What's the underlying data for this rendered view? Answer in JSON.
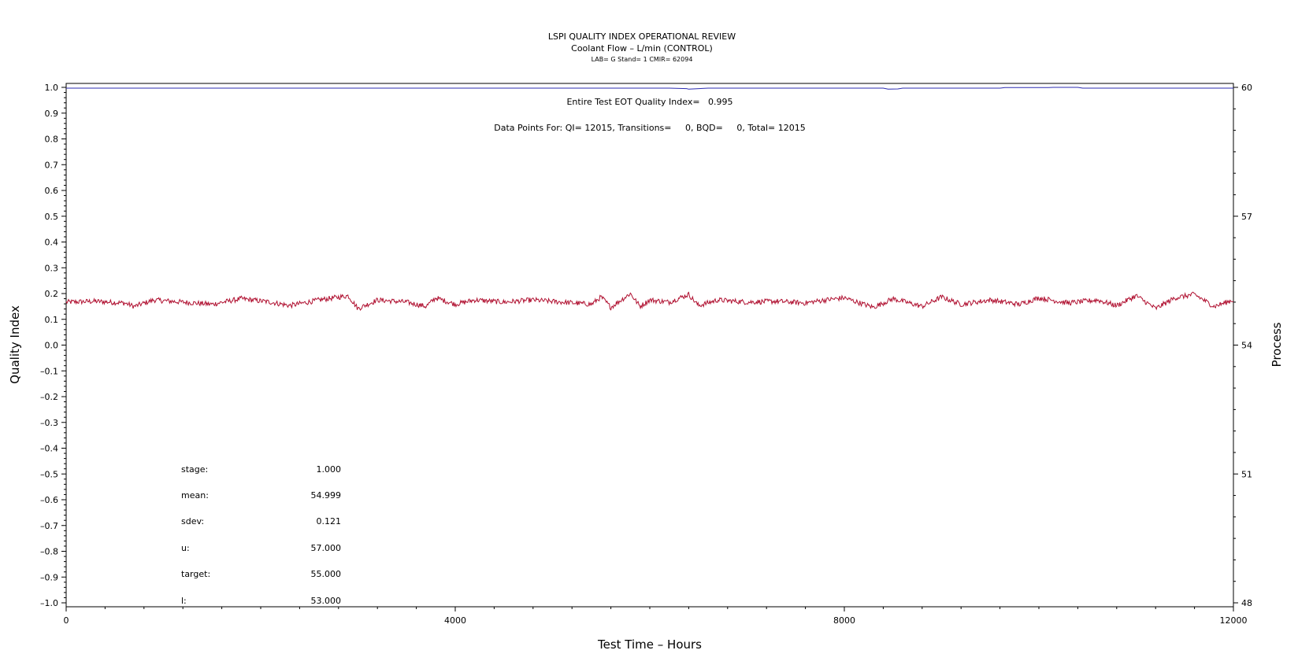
{
  "chart_data": {
    "type": "line",
    "title": "LSPI QUALITY INDEX OPERATIONAL REVIEW",
    "subtitle": "Coolant Flow – L/min (CONTROL)",
    "subsubtitle": "LAB= G Stand= 1 CMIR= 62094",
    "xlabel": "Test Time – Hours",
    "ylabel": "Quality Index",
    "y2label": "Process",
    "xlim": [
      0,
      12000
    ],
    "ylim": [
      -1.0,
      1.0
    ],
    "y2lim": [
      48,
      60
    ],
    "x_ticks": [
      0,
      4000,
      8000,
      12000
    ],
    "y_ticks": [
      1.0,
      0.9,
      0.8,
      0.7,
      0.6,
      0.5,
      0.4,
      0.3,
      0.2,
      0.1,
      0.0,
      -0.1,
      -0.2,
      -0.3,
      -0.4,
      -0.5,
      -0.6,
      -0.7,
      -0.8,
      -0.9,
      -1.0
    ],
    "y_tick_labels": [
      "1.0",
      "0.9",
      "0.8",
      "0.7",
      "0.6",
      "0.5",
      "0.4",
      "0.3",
      "0.2",
      "0.1",
      "0.0",
      "–0.1",
      "–0.2",
      "–0.3",
      "–0.4",
      "–0.5",
      "–0.6",
      "–0.7",
      "–0.8",
      "–0.9",
      "–1.0"
    ],
    "y2_ticks": [
      60,
      57,
      54,
      51,
      48
    ],
    "grid": false,
    "series": [
      {
        "role": "quality-index",
        "color": "#2b2bb0",
        "x": [
          0,
          6200,
          6380,
          6400,
          6600,
          8400,
          8450,
          8550,
          8600,
          9600,
          9650,
          10100,
          10150,
          10400,
          10450,
          12000
        ],
        "y": [
          0.997,
          0.997,
          0.995,
          0.993,
          0.997,
          0.997,
          0.993,
          0.994,
          0.997,
          0.997,
          0.999,
          0.999,
          1.0,
          1.0,
          0.997,
          0.997
        ]
      },
      {
        "role": "process",
        "color": "#b01030",
        "x": [
          0,
          300,
          600,
          700,
          900,
          1200,
          1500,
          1800,
          2100,
          2300,
          2600,
          2900,
          3000,
          3200,
          3500,
          3700,
          3800,
          4000,
          4200,
          4500,
          4800,
          5100,
          5400,
          5500,
          5600,
          5800,
          5900,
          6000,
          6200,
          6400,
          6500,
          6700,
          7000,
          7300,
          7600,
          7800,
          8000,
          8200,
          8300,
          8500,
          8800,
          9000,
          9200,
          9500,
          9800,
          10000,
          10300,
          10600,
          10800,
          11000,
          11200,
          11400,
          11600,
          11800,
          12000
        ],
        "y": [
          55.0,
          55.02,
          54.98,
          54.9,
          55.05,
          55.0,
          54.95,
          55.08,
          55.0,
          54.92,
          55.05,
          55.15,
          54.85,
          55.05,
          55.0,
          54.9,
          55.1,
          54.95,
          55.05,
          55.0,
          55.05,
          55.0,
          54.95,
          55.12,
          54.88,
          55.2,
          54.9,
          55.05,
          55.0,
          55.18,
          54.92,
          55.05,
          55.0,
          55.02,
          54.98,
          55.05,
          55.1,
          54.95,
          54.88,
          55.08,
          54.9,
          55.12,
          54.95,
          55.05,
          54.95,
          55.1,
          54.98,
          55.05,
          54.92,
          55.15,
          54.85,
          55.1,
          55.18,
          54.9,
          55.05
        ]
      }
    ],
    "annotations": {
      "eot": "Entire Test EOT Quality Index=   0.995",
      "points": "Data Points For: QI= 12015, Transitions=     0, BQD=     0, Total= 12015"
    },
    "stats": [
      {
        "label": "stage:",
        "value": "1.000"
      },
      {
        "label": "mean:",
        "value": "54.999"
      },
      {
        "label": "sdev:",
        "value": "0.121"
      },
      {
        "label": "u:",
        "value": "57.000"
      },
      {
        "label": "target:",
        "value": "55.000"
      },
      {
        "label": "l:",
        "value": "53.000"
      }
    ]
  }
}
